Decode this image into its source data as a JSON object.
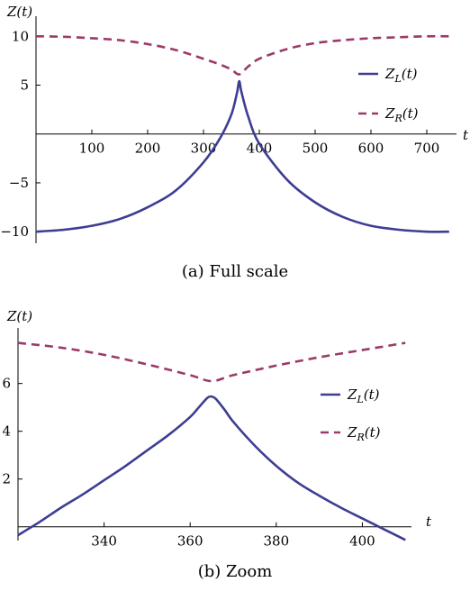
{
  "chart_data": [
    {
      "type": "line",
      "caption": "(a) Full scale",
      "ylabel": "Z(t)",
      "xlabel": "t",
      "xlim": [
        0,
        750
      ],
      "ylim": [
        -11,
        11.5
      ],
      "xticks": [
        100,
        200,
        300,
        400,
        500,
        600,
        700
      ],
      "yticks": [
        -10,
        -5,
        5,
        10
      ],
      "legend_position": "right",
      "series": [
        {
          "name": "Z_L(t)",
          "label_main": "Z",
          "label_sub": "L",
          "label_tail": "(t)",
          "color": "#3d3d94",
          "style": "solid",
          "x": [
            0,
            50,
            100,
            150,
            200,
            250,
            300,
            330,
            350,
            360,
            364,
            368,
            380,
            400,
            450,
            500,
            550,
            600,
            650,
            700,
            740
          ],
          "y": [
            -10.0,
            -9.8,
            -9.4,
            -8.7,
            -7.5,
            -5.8,
            -2.9,
            -0.4,
            2.0,
            4.2,
            5.4,
            4.3,
            1.8,
            -1.0,
            -4.7,
            -7.0,
            -8.5,
            -9.4,
            -9.8,
            -10.0,
            -10.0
          ]
        },
        {
          "name": "Z_R(t)",
          "label_main": "Z",
          "label_sub": "R",
          "label_tail": "(t)",
          "color": "#9b3a6a",
          "style": "dashed",
          "x": [
            0,
            50,
            100,
            150,
            200,
            250,
            300,
            330,
            350,
            364,
            380,
            400,
            450,
            500,
            550,
            600,
            650,
            700,
            740
          ],
          "y": [
            10.0,
            9.95,
            9.8,
            9.6,
            9.2,
            8.6,
            7.7,
            7.1,
            6.6,
            6.1,
            6.9,
            7.7,
            8.7,
            9.3,
            9.6,
            9.8,
            9.9,
            10.0,
            10.0
          ]
        }
      ]
    },
    {
      "type": "line",
      "caption": "(b) Zoom",
      "ylabel": "Z(t)",
      "xlabel": "t",
      "xlim": [
        320,
        411
      ],
      "ylim": [
        -0.5,
        8.1
      ],
      "xticks": [
        340,
        360,
        380,
        400
      ],
      "yticks": [
        2,
        4,
        6
      ],
      "legend_position": "right",
      "series": [
        {
          "name": "Z_L(t)",
          "label_main": "Z",
          "label_sub": "L",
          "label_tail": "(t)",
          "color": "#3d3d94",
          "style": "solid",
          "x": [
            320,
            325,
            330,
            335,
            340,
            345,
            350,
            355,
            360,
            362,
            364,
            365,
            366,
            368,
            370,
            375,
            380,
            385,
            390,
            395,
            400,
            405,
            410
          ],
          "y": [
            -0.35,
            0.2,
            0.8,
            1.35,
            1.95,
            2.55,
            3.2,
            3.85,
            4.6,
            5.0,
            5.4,
            5.45,
            5.35,
            4.9,
            4.4,
            3.4,
            2.55,
            1.85,
            1.3,
            0.8,
            0.35,
            -0.1,
            -0.55
          ]
        },
        {
          "name": "Z_R(t)",
          "label_main": "Z",
          "label_sub": "R",
          "label_tail": "(t)",
          "color": "#9b3a6a",
          "style": "dashed",
          "x": [
            320,
            330,
            340,
            350,
            360,
            365,
            370,
            380,
            390,
            400,
            410
          ],
          "y": [
            7.7,
            7.5,
            7.2,
            6.8,
            6.35,
            6.1,
            6.35,
            6.75,
            7.1,
            7.4,
            7.7
          ]
        }
      ]
    }
  ]
}
